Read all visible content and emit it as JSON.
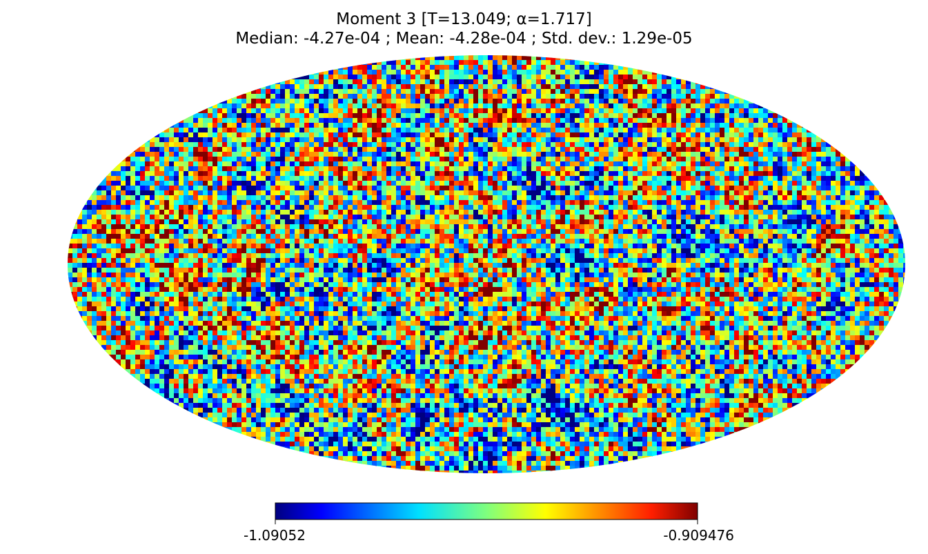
{
  "chart_data": {
    "type": "heatmap",
    "projection": "mollweide",
    "title": "Moment 3 [T=13.049; α=1.717]",
    "subtitle": "Median: -4.27e-04 ; Mean: -4.28e-04 ; Std. dev.: 1.29e-05",
    "colormap": "jet",
    "colorbar": {
      "min": -1.09052,
      "max": -0.909476,
      "min_label": "-1.09052",
      "max_label": "-0.909476",
      "orientation": "horizontal",
      "placement": "bottom"
    },
    "stats": {
      "median": -0.000427,
      "mean": -0.000428,
      "std_dev": 1.29e-05
    },
    "grid": false
  }
}
